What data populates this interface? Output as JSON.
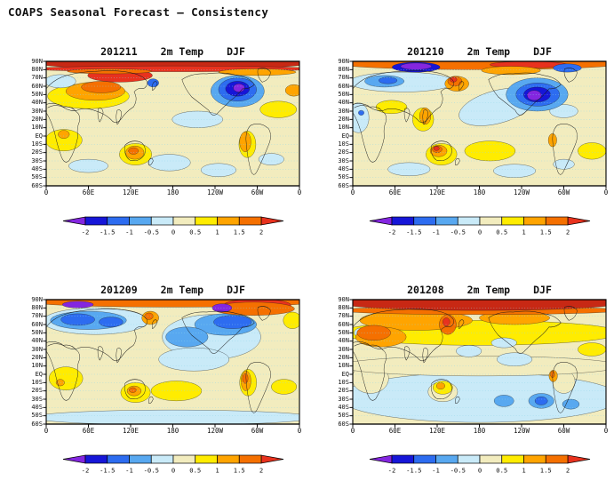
{
  "page_title": "COAPS Seasonal Forecast – Consistency",
  "chart_data": {
    "type": "heatmap",
    "figure": "2x2 grid of global filled-contour maps of 2m temperature anomaly seasonal forecasts, each with its own anomaly colorbar",
    "season": "DJF",
    "variable": "2m Temp",
    "axes": {
      "lat_labels": [
        "90N",
        "80N",
        "70N",
        "60N",
        "50N",
        "40N",
        "30N",
        "20N",
        "10N",
        "EQ",
        "10S",
        "20S",
        "30S",
        "40S",
        "50S",
        "60S"
      ],
      "lon_labels": [
        "0",
        "60E",
        "120E",
        "180",
        "120W",
        "60W",
        "0"
      ],
      "lat_range_deg": [
        90,
        -60
      ],
      "lon_range_deg": [
        0,
        360
      ],
      "gridlines": "dotted light-blue horizontal lines every 10 degrees latitude"
    },
    "colorbar": {
      "levels": [
        "-2",
        "-1.5",
        "-1",
        "-0.5",
        "0",
        "0.5",
        "1",
        "1.5",
        "2"
      ],
      "segment_colors": [
        "#1616d8",
        "#2d6cf0",
        "#58a8f0",
        "#c9eaf8",
        "#f2ecbe",
        "#ffec00",
        "#ffa400",
        "#f57000"
      ],
      "below_arrow_color": "#8426e0",
      "above_arrow_color": "#e8321e"
    },
    "palette": {
      "base": "#f2ecbe",
      "pale": "#c9eaf8",
      "sky": "#58a8f0",
      "mblue": "#2d6cf0",
      "deep": "#1616d8",
      "purple": "#8426e0",
      "yellow": "#ffec00",
      "orange": "#ffa400",
      "dkor": "#f57000",
      "red": "#e8321e",
      "dkred": "#c82814",
      "grid": "#8fd7ea",
      "coast": "#1a1a1a"
    },
    "panels": [
      {
        "init_month": "201211",
        "variable": "2m Temp",
        "season": "DJF",
        "pattern_summary": "Strong warm anomaly across Arctic and Siberia, warm central Asia and Australia; strong cold anomaly (to below -2) over eastern North America; weak cool patches in Southern Ocean.",
        "anomalies": [
          [
            "yellow",
            60,
            42,
            58,
            15
          ],
          [
            "yellow",
            330,
            58,
            26,
            10
          ],
          [
            "yellow",
            25,
            95,
            26,
            13
          ],
          [
            "yellow",
            127,
            112,
            23,
            13
          ],
          [
            "yellow",
            286,
            100,
            12,
            16
          ],
          [
            "pale",
            20,
            24,
            22,
            8
          ],
          [
            "pale",
            215,
            70,
            36,
            10
          ],
          [
            "pale",
            60,
            126,
            28,
            8
          ],
          [
            "pale",
            175,
            122,
            30,
            10
          ],
          [
            "pale",
            245,
            131,
            25,
            8
          ],
          [
            "pale",
            320,
            118,
            18,
            7
          ],
          [
            "orange",
            70,
            36,
            42,
            11
          ],
          [
            "dkor",
            78,
            31,
            28,
            7
          ],
          [
            "red",
            105,
            17,
            46,
            8
          ],
          [
            "orange",
            352,
            35,
            12,
            7
          ],
          [
            "orange",
            25,
            88,
            8,
            5
          ],
          [
            "orange",
            126,
            110,
            13,
            8
          ],
          [
            "dkor",
            124,
            108,
            7,
            4
          ],
          [
            "orange",
            283,
            97,
            8,
            12
          ],
          [
            "sky",
            272,
            36,
            38,
            19
          ],
          [
            "mblue",
            272,
            34,
            27,
            14
          ],
          [
            "deep",
            272,
            33,
            17,
            9
          ],
          [
            "purple",
            274,
            32,
            8,
            5
          ],
          [
            "mblue",
            152,
            26,
            8,
            5
          ],
          [
            "dkred",
            180,
            1,
            200,
            9
          ],
          [
            "red",
            180,
            9,
            200,
            3.5
          ],
          [
            "orange",
            300,
            13,
            55,
            4
          ],
          [
            "dkor",
            90,
            12,
            60,
            3
          ]
        ]
      },
      {
        "init_month": "201210",
        "variable": "2m Temp",
        "season": "DJF",
        "pattern_summary": "Warm Arctic fringe with cold pocket near pole; cool band over Siberia; deep cold anomaly over central North America extending into the North Pacific; warm spots over northeast Asia and northwest Australia.",
        "anomalies": [
          [
            "yellow",
            55,
            55,
            22,
            8
          ],
          [
            "yellow",
            195,
            108,
            36,
            12
          ],
          [
            "yellow",
            340,
            108,
            20,
            10
          ],
          [
            "yellow",
            100,
            70,
            15,
            14
          ],
          [
            "yellow",
            126,
            112,
            22,
            13
          ],
          [
            "pale",
            70,
            25,
            75,
            12
          ],
          [
            "sky",
            45,
            24,
            28,
            7
          ],
          [
            "mblue",
            50,
            23,
            13,
            4
          ],
          [
            "pale",
            205,
            55,
            55,
            20,
            -12
          ],
          [
            "pale",
            300,
            60,
            20,
            8
          ],
          [
            "pale",
            8,
            68,
            15,
            18
          ],
          [
            "mblue",
            12,
            62,
            4,
            3
          ],
          [
            "pale",
            80,
            130,
            30,
            8
          ],
          [
            "pale",
            230,
            132,
            30,
            8
          ],
          [
            "pale",
            300,
            124,
            15,
            6
          ],
          [
            "sky",
            262,
            40,
            44,
            20
          ],
          [
            "mblue",
            263,
            40,
            31,
            14
          ],
          [
            "deep",
            262,
            40,
            19,
            9
          ],
          [
            "purple",
            258,
            41,
            10,
            6
          ],
          [
            "orange",
            148,
            27,
            17,
            9
          ],
          [
            "dkor",
            145,
            24,
            10,
            6
          ],
          [
            "red",
            143,
            22,
            5,
            3
          ],
          [
            "orange",
            103,
            66,
            8,
            10
          ],
          [
            "orange",
            122,
            108,
            12,
            7
          ],
          [
            "dkor",
            120,
            106,
            7,
            4
          ],
          [
            "red",
            119,
            105,
            4,
            2.5
          ],
          [
            "orange",
            284,
            95,
            6,
            8
          ],
          [
            "dkor",
            180,
            3,
            200,
            7
          ],
          [
            "red",
            250,
            4,
            55,
            4
          ],
          [
            "orange",
            225,
            11,
            42,
            5
          ],
          [
            "deep",
            90,
            7,
            34,
            6
          ],
          [
            "purple",
            90,
            6,
            22,
            4
          ],
          [
            "mblue",
            305,
            8,
            20,
            5
          ]
        ]
      },
      {
        "init_month": "201209",
        "variable": "2m Temp",
        "season": "DJF",
        "pattern_summary": "Broad cold anomalies over northern Eurasia and over North America / North Pacific; warm Arctic fringe with strong warmth over northeast Canada and Greenland; warm Peru coast, Kamchatka and central Australia.",
        "anomalies": [
          [
            "yellow",
            28,
            95,
            24,
            14
          ],
          [
            "yellow",
            185,
            110,
            36,
            12
          ],
          [
            "yellow",
            338,
            105,
            18,
            9
          ],
          [
            "yellow",
            127,
            112,
            21,
            12
          ],
          [
            "yellow",
            350,
            25,
            13,
            10
          ],
          [
            "yellow",
            287,
            100,
            12,
            16
          ],
          [
            "pale",
            180,
            142,
            200,
            9
          ],
          [
            "pale",
            235,
            45,
            70,
            27
          ],
          [
            "pale",
            210,
            72,
            50,
            14
          ],
          [
            "pale",
            70,
            26,
            75,
            16
          ],
          [
            "sky",
            60,
            25,
            54,
            11
          ],
          [
            "mblue",
            45,
            24,
            24,
            7
          ],
          [
            "mblue",
            92,
            27,
            17,
            6
          ],
          [
            "sky",
            255,
            30,
            44,
            13
          ],
          [
            "mblue",
            265,
            27,
            27,
            8
          ],
          [
            "sky",
            200,
            45,
            30,
            12
          ],
          [
            "orange",
            148,
            22,
            12,
            8
          ],
          [
            "dkor",
            146,
            20,
            6,
            4
          ],
          [
            "orange",
            284,
            98,
            7,
            12
          ],
          [
            "dkor",
            283,
            95,
            4,
            6
          ],
          [
            "orange",
            125,
            110,
            10,
            6
          ],
          [
            "dkor",
            123,
            109,
            5,
            3
          ],
          [
            "orange",
            20,
            100,
            6,
            4
          ],
          [
            "dkor",
            180,
            3,
            200,
            6
          ],
          [
            "red",
            300,
            7,
            48,
            8
          ],
          [
            "dkor",
            295,
            11,
            58,
            8
          ],
          [
            "purple",
            45,
            6,
            22,
            4
          ],
          [
            "purple",
            250,
            10,
            14,
            5
          ]
        ]
      },
      {
        "init_month": "201208",
        "variable": "2m Temp",
        "season": "DJF",
        "pattern_summary": "Broad warm anomaly over most of the Northern Hemisphere with strong Arctic warming; yellow mid-latitudes; cool anomalies across the Southern Ocean and southern South America.",
        "anomalies": [
          [
            "yellow",
            180,
            40,
            200,
            15
          ],
          [
            "pale",
            180,
            118,
            200,
            30
          ],
          [
            "base",
            25,
            95,
            26,
            18
          ],
          [
            "base",
            128,
            111,
            21,
            12
          ],
          [
            "base",
            300,
            99,
            16,
            14
          ],
          [
            "base",
            180,
            80,
            200,
            12
          ],
          [
            "pale",
            215,
            52,
            18,
            6
          ],
          [
            "pale",
            165,
            62,
            18,
            7
          ],
          [
            "pale",
            12,
            40,
            10,
            6
          ],
          [
            "pale",
            230,
            72,
            25,
            8
          ],
          [
            "sky",
            268,
            122,
            18,
            9
          ],
          [
            "mblue",
            268,
            122,
            9,
            5
          ],
          [
            "sky",
            215,
            122,
            14,
            7
          ],
          [
            "sky",
            310,
            126,
            12,
            6
          ],
          [
            "yellow",
            128,
            106,
            14,
            8
          ],
          [
            "orange",
            125,
            104,
            6,
            4
          ],
          [
            "orange",
            285,
            92,
            6,
            7
          ],
          [
            "dkor",
            284,
            90,
            3,
            4
          ],
          [
            "yellow",
            340,
            60,
            20,
            8
          ],
          [
            "orange",
            90,
            25,
            80,
            12
          ],
          [
            "orange",
            230,
            22,
            50,
            8
          ],
          [
            "orange",
            40,
            45,
            36,
            12
          ],
          [
            "dkor",
            30,
            40,
            24,
            9
          ],
          [
            "dkor",
            135,
            30,
            12,
            12
          ],
          [
            "red",
            133,
            27,
            5,
            5
          ],
          [
            "dkor",
            180,
            13,
            200,
            5
          ],
          [
            "dkred",
            180,
            4,
            200,
            9
          ]
        ]
      }
    ]
  }
}
